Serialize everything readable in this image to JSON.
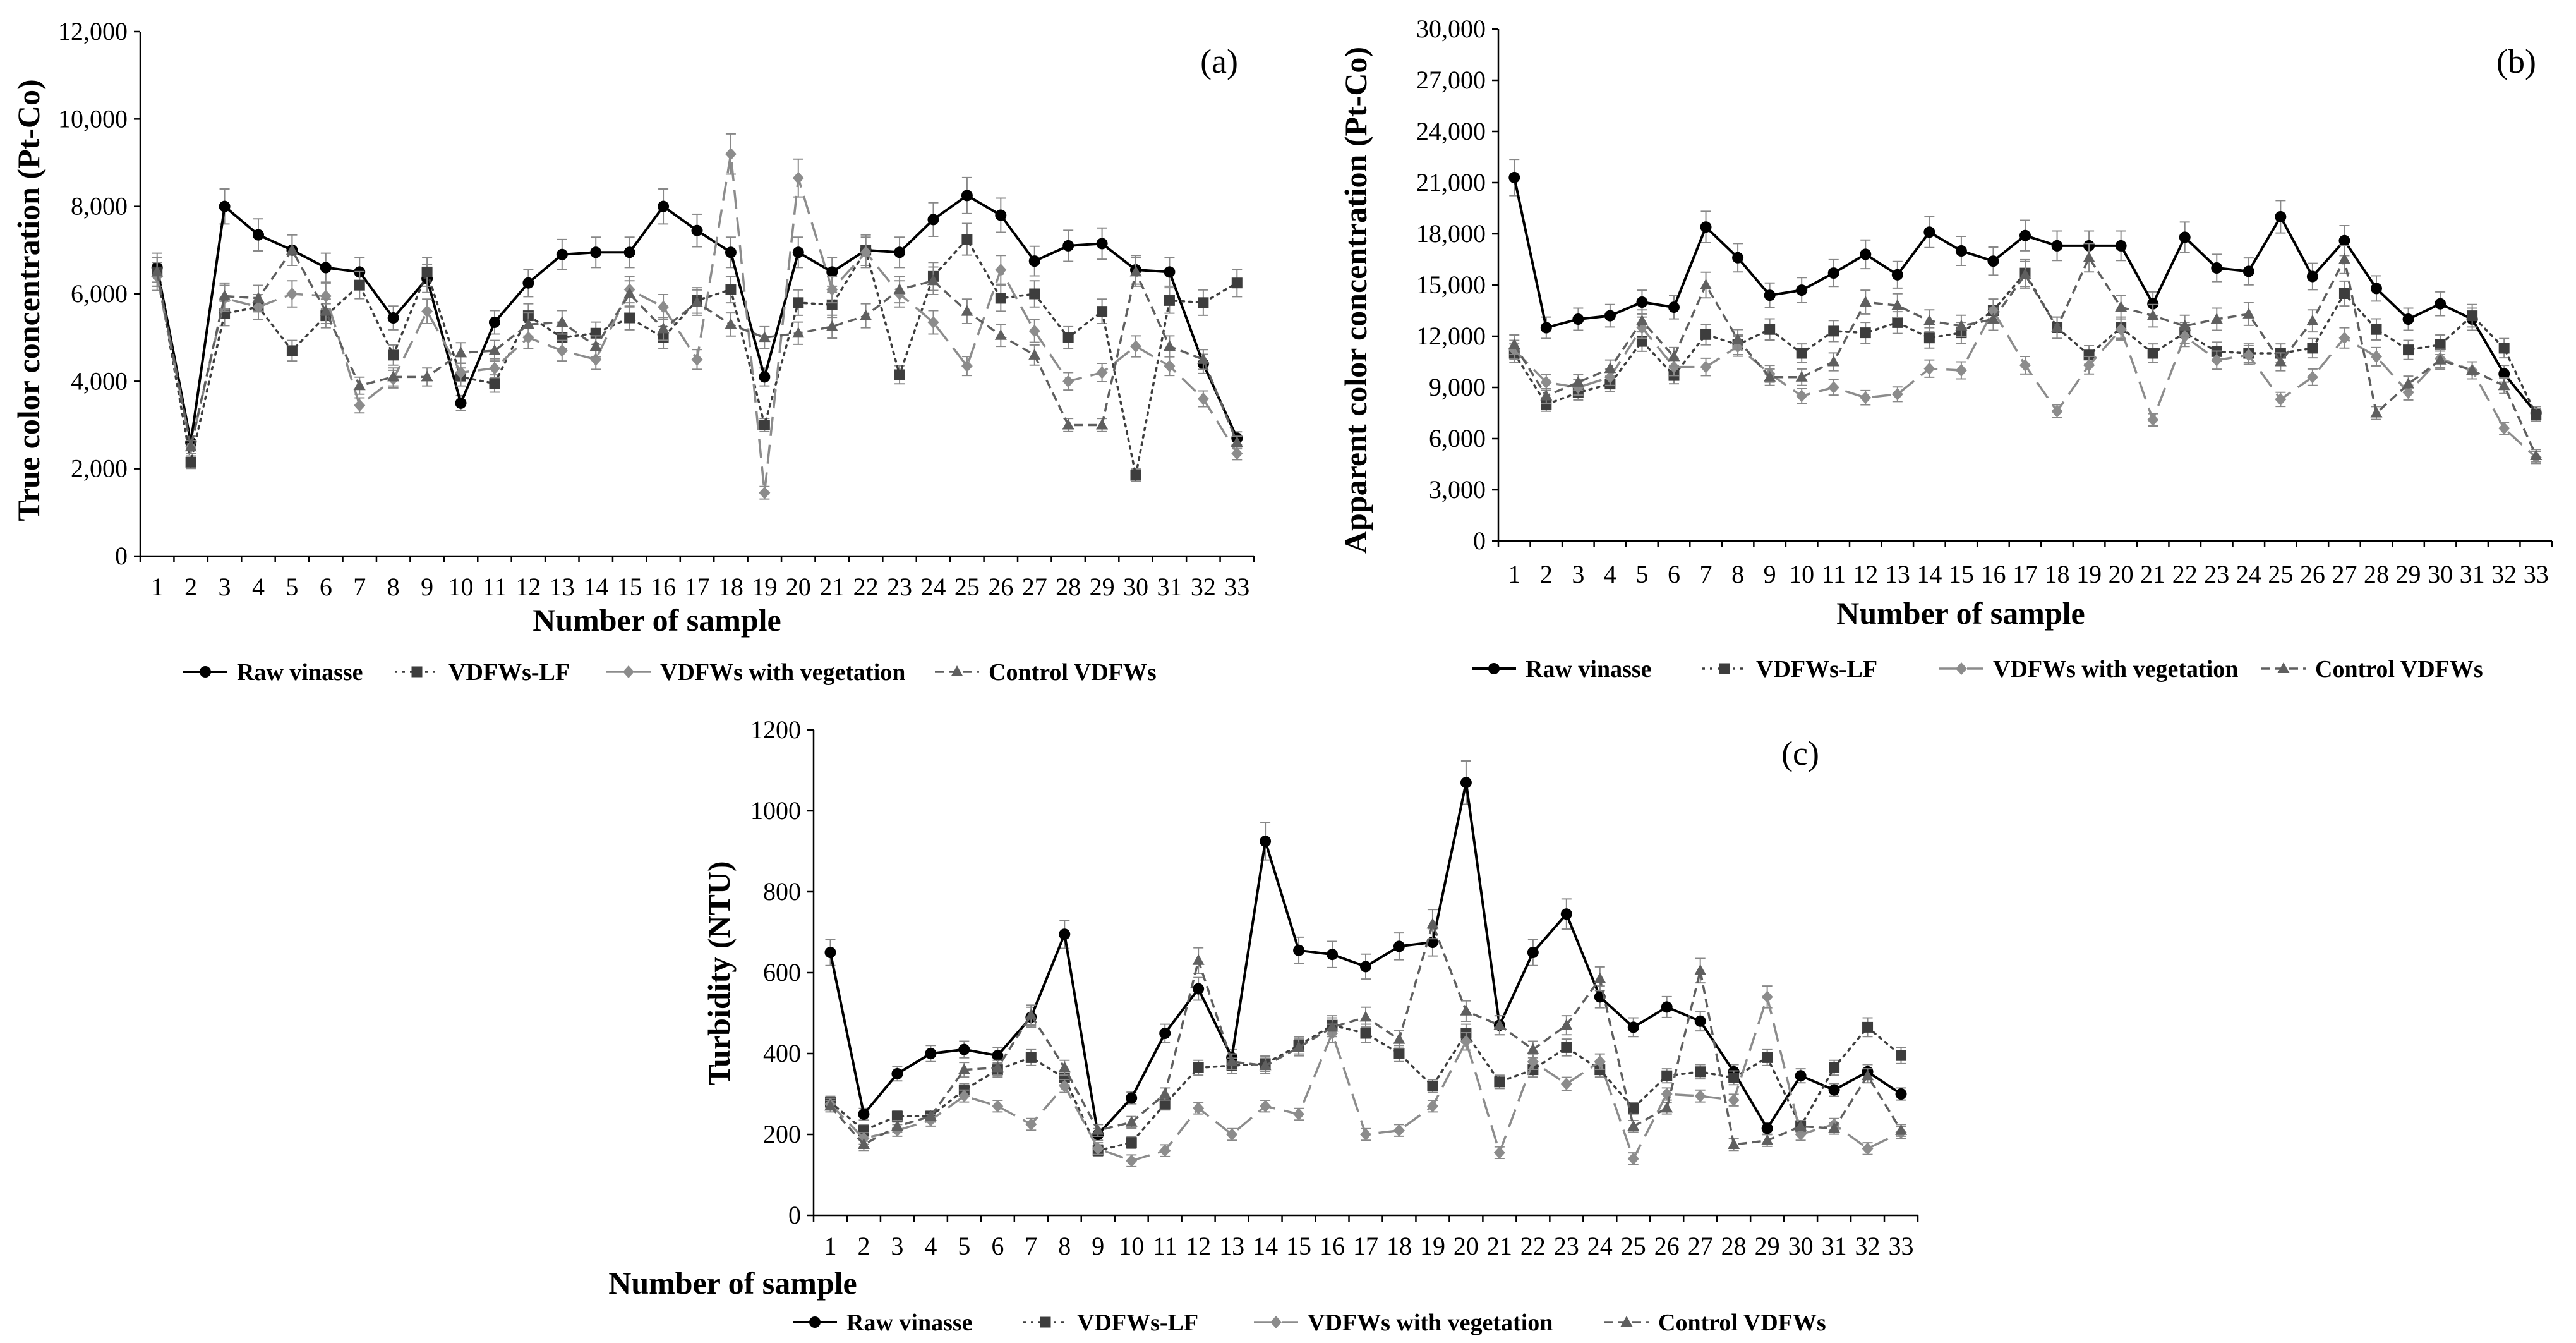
{
  "legend": [
    "Raw vinasse",
    "VDFWs-LF",
    "VDFWs with vegetation",
    "Control VDFWs"
  ],
  "styles": {
    "series_colors": [
      "#000000",
      "#3d3d3d",
      "#8c8c8c",
      "#5f5f5f"
    ],
    "error_bar_color": "#888888",
    "marker_shapes": [
      "circle",
      "square",
      "diamond",
      "triangle"
    ]
  },
  "chart_data": [
    {
      "type": "line",
      "panel_label": "(a)",
      "title": "",
      "xlabel": "Number of sample",
      "ylabel": "True color concentration (Pt-Co)",
      "x": [
        1,
        2,
        3,
        4,
        5,
        6,
        7,
        8,
        9,
        10,
        11,
        12,
        13,
        14,
        15,
        16,
        17,
        18,
        19,
        20,
        21,
        22,
        23,
        24,
        25,
        26,
        27,
        28,
        29,
        30,
        31,
        32,
        33
      ],
      "ylim": [
        0,
        12000
      ],
      "yticks": [
        0,
        2000,
        4000,
        6000,
        8000,
        10000,
        12000
      ],
      "ytick_labels": [
        "0",
        "2,000",
        "4,000",
        "6,000",
        "8,000",
        "10,000",
        "12,000"
      ],
      "series": [
        {
          "name": "Raw vinasse",
          "values": [
            6600,
            2600,
            8000,
            7350,
            7000,
            6600,
            6500,
            5450,
            6350,
            3500,
            5350,
            6250,
            6900,
            6950,
            6950,
            8000,
            7450,
            6950,
            4100,
            6950,
            6500,
            7000,
            6950,
            7700,
            8250,
            7800,
            6750,
            7100,
            7150,
            6550,
            6500,
            4400,
            2700
          ]
        },
        {
          "name": "VDFWs-LF",
          "values": [
            6500,
            2150,
            5550,
            5700,
            4700,
            5500,
            6200,
            4600,
            6500,
            4100,
            3950,
            5500,
            5000,
            5100,
            5450,
            5000,
            5850,
            6100,
            3000,
            5800,
            5750,
            7000,
            4150,
            6400,
            7250,
            5900,
            6000,
            5000,
            5600,
            1850,
            5850,
            5800,
            6250
          ]
        },
        {
          "name": "VDFWs with vegetation",
          "values": [
            6400,
            2500,
            5900,
            5700,
            6000,
            5950,
            3450,
            4050,
            5600,
            4200,
            4300,
            5000,
            4700,
            4500,
            6100,
            5700,
            4500,
            9200,
            1450,
            8650,
            6100,
            6950,
            6000,
            5350,
            4350,
            6550,
            5150,
            4000,
            4200,
            4800,
            4350,
            3600,
            2350
          ]
        },
        {
          "name": "Control VDFWs",
          "values": [
            6500,
            2500,
            5950,
            5900,
            7000,
            5600,
            3900,
            4100,
            4100,
            4650,
            4700,
            5300,
            5350,
            4800,
            6000,
            5200,
            5800,
            5300,
            5000,
            5100,
            5250,
            5500,
            6100,
            6300,
            5600,
            5050,
            4600,
            3000,
            3000,
            6500,
            4800,
            4500,
            2600
          ]
        }
      ]
    },
    {
      "type": "line",
      "panel_label": "(b)",
      "title": "",
      "xlabel": "Number of sample",
      "ylabel": "Apparent color concentration (Pt-Co)",
      "x": [
        1,
        2,
        3,
        4,
        5,
        6,
        7,
        8,
        9,
        10,
        11,
        12,
        13,
        14,
        15,
        16,
        17,
        18,
        19,
        20,
        21,
        22,
        23,
        24,
        25,
        26,
        27,
        28,
        29,
        30,
        31,
        32,
        33
      ],
      "ylim": [
        0,
        30000
      ],
      "yticks": [
        0,
        3000,
        6000,
        9000,
        12000,
        15000,
        18000,
        21000,
        24000,
        27000,
        30000
      ],
      "ytick_labels": [
        "0",
        "3,000",
        "6,000",
        "9,000",
        "12,000",
        "15,000",
        "18,000",
        "21,000",
        "24,000",
        "27,000",
        "30,000"
      ],
      "series": [
        {
          "name": "Raw vinasse",
          "values": [
            21300,
            12500,
            13000,
            13200,
            14000,
            13700,
            18400,
            16600,
            14400,
            14700,
            15700,
            16800,
            15600,
            18100,
            17000,
            16400,
            17900,
            17300,
            17300,
            17300,
            13900,
            17800,
            16000,
            15800,
            19000,
            15500,
            17600,
            14800,
            13000,
            13900,
            13000,
            9800,
            7500
          ]
        },
        {
          "name": "VDFWs-LF",
          "values": [
            11000,
            8000,
            8700,
            9200,
            11700,
            9700,
            12100,
            11500,
            12400,
            11000,
            12300,
            12200,
            12800,
            11900,
            12200,
            13500,
            15700,
            12500,
            10900,
            12500,
            11000,
            12200,
            11100,
            11000,
            11000,
            11300,
            14500,
            12400,
            11200,
            11500,
            13200,
            11300,
            7400
          ]
        },
        {
          "name": "VDFWs with vegetation",
          "values": [
            11200,
            9300,
            9000,
            9600,
            12500,
            10200,
            10200,
            11400,
            9800,
            8500,
            9000,
            8400,
            8600,
            10100,
            10000,
            13500,
            10300,
            7600,
            10300,
            12400,
            7100,
            12000,
            10600,
            10900,
            8300,
            9600,
            11900,
            10800,
            8700,
            10700,
            10000,
            6600,
            4900
          ]
        },
        {
          "name": "Control VDFWs",
          "values": [
            11500,
            8500,
            9300,
            10100,
            12900,
            10800,
            15000,
            11800,
            9600,
            9600,
            10500,
            14000,
            13800,
            12900,
            12600,
            13000,
            15600,
            12500,
            16600,
            13700,
            13200,
            12600,
            13000,
            13300,
            10500,
            12900,
            16500,
            7500,
            9200,
            10600,
            10000,
            9100,
            5000
          ]
        }
      ]
    },
    {
      "type": "line",
      "panel_label": "(c)",
      "title": "",
      "xlabel": "Number of sample",
      "ylabel": "Turbidity (NTU)",
      "x": [
        1,
        2,
        3,
        4,
        5,
        6,
        7,
        8,
        9,
        10,
        11,
        12,
        13,
        14,
        15,
        16,
        17,
        18,
        19,
        20,
        21,
        22,
        23,
        24,
        25,
        26,
        27,
        28,
        29,
        30,
        31,
        32,
        33
      ],
      "ylim": [
        0,
        1200
      ],
      "yticks": [
        0,
        200,
        400,
        600,
        800,
        1000,
        1200
      ],
      "ytick_labels": [
        "0",
        "200",
        "400",
        "600",
        "800",
        "1000",
        "1200"
      ],
      "series": [
        {
          "name": "Raw vinasse",
          "values": [
            650,
            250,
            350,
            400,
            410,
            395,
            490,
            695,
            200,
            290,
            450,
            560,
            390,
            925,
            655,
            645,
            615,
            665,
            675,
            1070,
            470,
            650,
            745,
            540,
            465,
            515,
            480,
            355,
            215,
            345,
            310,
            355,
            300
          ]
        },
        {
          "name": "VDFWs-LF",
          "values": [
            280,
            210,
            245,
            245,
            310,
            360,
            390,
            340,
            160,
            180,
            275,
            365,
            370,
            375,
            420,
            470,
            450,
            400,
            320,
            450,
            330,
            360,
            415,
            360,
            265,
            345,
            355,
            340,
            390,
            220,
            365,
            465,
            395
          ]
        },
        {
          "name": "VDFWs with vegetation",
          "values": [
            275,
            190,
            210,
            235,
            295,
            270,
            225,
            320,
            165,
            135,
            160,
            265,
            200,
            270,
            250,
            450,
            200,
            210,
            270,
            430,
            155,
            380,
            325,
            380,
            140,
            300,
            295,
            285,
            540,
            200,
            225,
            165,
            205
          ]
        },
        {
          "name": "Control VDFWs",
          "values": [
            270,
            175,
            220,
            245,
            360,
            365,
            495,
            365,
            210,
            230,
            300,
            630,
            380,
            370,
            415,
            465,
            490,
            435,
            720,
            505,
            470,
            410,
            470,
            585,
            220,
            265,
            605,
            175,
            185,
            220,
            215,
            345,
            210
          ]
        }
      ]
    }
  ]
}
